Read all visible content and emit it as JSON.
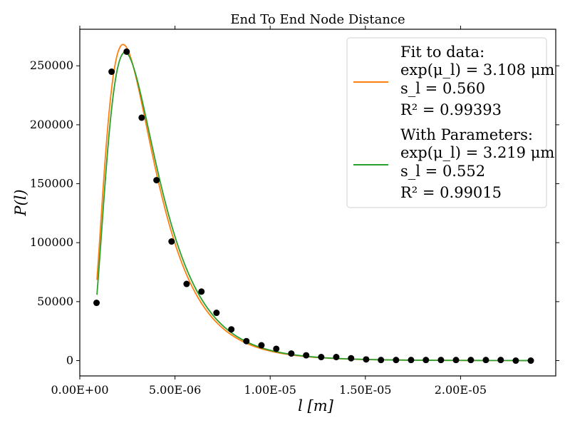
{
  "chart_data": {
    "type": "scatter",
    "title": "End To End Node Distance",
    "xlabel": "l [m]",
    "ylabel": "P(l)",
    "xlim": [
      0,
      2.5e-05
    ],
    "ylim": [
      -13000,
      281000
    ],
    "x_ticks": [
      0,
      5e-06,
      1e-05,
      1.5e-05,
      2e-05
    ],
    "x_tick_labels": [
      "0.00E+00",
      "5.00E-06",
      "1.00E-05",
      "1.50E-05",
      "2.00E-05"
    ],
    "y_ticks": [
      0,
      50000,
      100000,
      150000,
      200000,
      250000
    ],
    "y_tick_labels": [
      "0",
      "50000",
      "100000",
      "150000",
      "200000",
      "250000"
    ],
    "grid": false,
    "legend_position": "top-right",
    "points": {
      "color": "#000000",
      "x": [
        8.8e-07,
        1.67e-06,
        2.46e-06,
        3.25e-06,
        4.03e-06,
        4.82e-06,
        5.61e-06,
        6.39e-06,
        7.18e-06,
        7.96e-06,
        8.75e-06,
        9.54e-06,
        1.032e-05,
        1.111e-05,
        1.189e-05,
        1.268e-05,
        1.347e-05,
        1.425e-05,
        1.504e-05,
        1.582e-05,
        1.661e-05,
        1.74e-05,
        1.818e-05,
        1.897e-05,
        1.976e-05,
        2.054e-05,
        2.133e-05,
        2.211e-05,
        2.29e-05,
        2.369e-05
      ],
      "y": [
        49000,
        245000,
        262000,
        206000,
        153000,
        101000,
        65000,
        58500,
        40500,
        26500,
        16500,
        13000,
        10000,
        6000,
        4500,
        3000,
        3000,
        2000,
        1000,
        500,
        500,
        500,
        500,
        500,
        500,
        500,
        500,
        500,
        0,
        0
      ]
    },
    "series": [
      {
        "name": "Fit to data",
        "color": "#ff7f0e",
        "mu": 1.134,
        "s": 0.56,
        "x_start": 9e-07,
        "x_end": 2.37e-05,
        "legend_lines": [
          "Fit to data:",
          "exp(μ_l) = 3.108 μm",
          "s_l = 0.560",
          "R² = 0.99393"
        ]
      },
      {
        "name": "With Parameters",
        "color": "#2ca02c",
        "mu": 1.1691,
        "s": 0.552,
        "x_start": 9e-07,
        "x_end": 2.37e-05,
        "legend_lines": [
          "With Parameters:",
          "exp(μ_l) = 3.219 μm",
          "s_l = 0.552",
          "R² = 0.99015"
        ]
      }
    ]
  }
}
